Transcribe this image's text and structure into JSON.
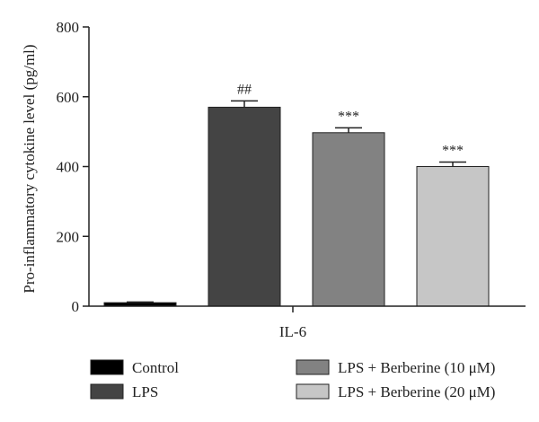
{
  "chart_data": {
    "type": "bar",
    "title": "",
    "xlabel": "IL-6",
    "ylabel": "Pro-inflammatory cytokine level (pg/ml)",
    "ylim": [
      0,
      800
    ],
    "yticks": [
      0,
      200,
      400,
      600,
      800
    ],
    "grid": false,
    "legend_position": "bottom",
    "categories": [
      "IL-6"
    ],
    "series": [
      {
        "name": "Control",
        "values": [
          10
        ],
        "error": [
          2
        ],
        "significance": "",
        "color": "#000000"
      },
      {
        "name": "LPS",
        "values": [
          570
        ],
        "error": [
          18
        ],
        "significance": "##",
        "color": "#444444"
      },
      {
        "name": "LPS + Berberine (10 μM)",
        "values": [
          497
        ],
        "error": [
          14
        ],
        "significance": "***",
        "color": "#828282"
      },
      {
        "name": "LPS + Berberine (20 μM)",
        "values": [
          400
        ],
        "error": [
          13
        ],
        "significance": "***",
        "color": "#c6c6c6"
      }
    ]
  }
}
